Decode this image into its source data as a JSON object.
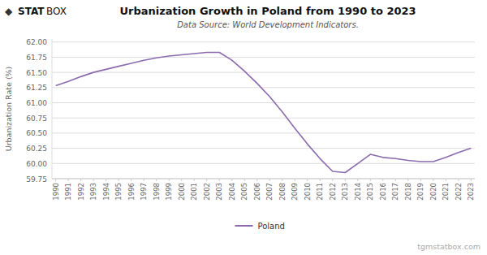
{
  "chart_data": {
    "type": "line",
    "title": "Urbanization Growth in Poland from 1990 to 2023",
    "subtitle": "Data Source: World Development Indicators.",
    "y_label": "Urbanization Rate (%)",
    "annotations": [
      "◆",
      "STAT",
      "BOX",
      "tgmstatbox.com"
    ],
    "x": [
      1990,
      1991,
      1992,
      1993,
      1994,
      1995,
      1996,
      1997,
      1998,
      1999,
      2000,
      2001,
      2002,
      2003,
      2004,
      2005,
      2006,
      2007,
      2008,
      2009,
      2010,
      2011,
      2012,
      2013,
      2014,
      2015,
      2016,
      2017,
      2018,
      2019,
      2020,
      2021,
      2022,
      2023
    ],
    "series": [
      {
        "name": "Poland",
        "color": "#8B6BAE",
        "values": [
          61.28,
          61.35,
          61.43,
          61.5,
          61.55,
          61.6,
          61.65,
          61.7,
          61.74,
          61.77,
          61.79,
          61.81,
          61.83,
          61.83,
          61.7,
          61.52,
          61.32,
          61.1,
          60.85,
          60.58,
          60.32,
          60.08,
          59.87,
          59.85,
          60.0,
          60.15,
          60.1,
          60.08,
          60.05,
          60.03,
          60.03,
          60.1,
          60.18,
          60.25
        ]
      }
    ],
    "xlim": [
      1989.7,
      2023.3
    ],
    "xticks": [
      1990,
      1991,
      1992,
      1993,
      1994,
      1995,
      1996,
      1997,
      1998,
      1999,
      2000,
      2001,
      2002,
      2003,
      2004,
      2005,
      2006,
      2007,
      2008,
      2009,
      2010,
      2011,
      2012,
      2013,
      2014,
      2015,
      2016,
      2017,
      2018,
      2019,
      2020,
      2021,
      2022,
      2023
    ],
    "ylim": [
      59.75,
      62.05
    ],
    "yticks": [
      59.75,
      {
        "value": 60.0,
        "label": "60.00"
      },
      60.25,
      {
        "value": 60.5,
        "label": "60.50"
      },
      60.75,
      {
        "value": 61.0,
        "label": "61.00"
      },
      61.25,
      {
        "value": 61.5,
        "label": "61.50"
      },
      61.75,
      {
        "value": 62.0,
        "label": "62.00"
      }
    ],
    "grid": true,
    "legend": "bottom"
  }
}
